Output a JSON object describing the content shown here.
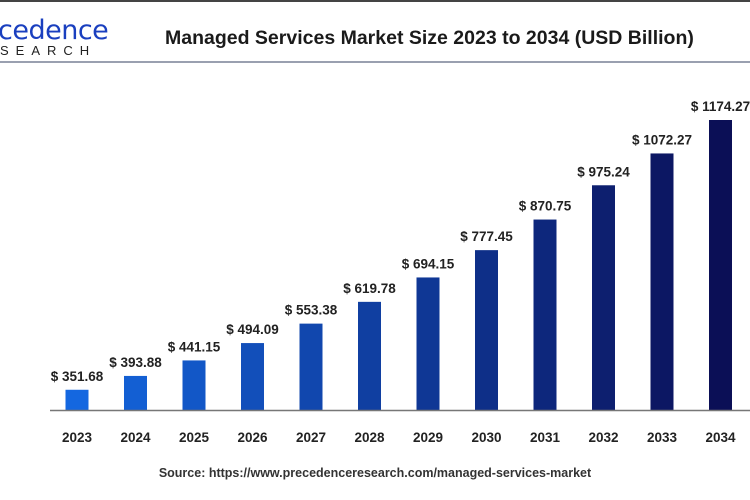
{
  "logo": {
    "line1": "cedence",
    "line2": "SEARCH"
  },
  "title": "Managed Services Market Size 2023 to 2034 (USD Billion)",
  "source": "Source: https://www.precedenceresearch.com/managed-services-market",
  "chart_data": {
    "type": "bar",
    "title": "Managed Services Market Size 2023 to 2034 (USD Billion)",
    "categories": [
      "2023",
      "2024",
      "2025",
      "2026",
      "2027",
      "2028",
      "2029",
      "2030",
      "2031",
      "2032",
      "2033",
      "2034"
    ],
    "values": [
      351.68,
      393.88,
      441.15,
      494.09,
      553.38,
      619.78,
      694.15,
      777.45,
      870.75,
      975.24,
      1072.27,
      1174.27
    ],
    "labels": [
      "$ 351.68",
      "$ 393.88",
      "$ 441.15",
      "$ 494.09",
      "$ 553.38",
      "$ 619.78",
      "$ 694.15",
      "$ 777.45",
      "$ 870.75",
      "$ 975.24",
      "$ 1072.27",
      "$ 1174.27"
    ],
    "xlabel": "",
    "ylabel": "",
    "ylim": [
      290,
      1200
    ],
    "grid": false,
    "colors": {
      "start": "#1467e0",
      "end": "#0b0f56"
    }
  }
}
